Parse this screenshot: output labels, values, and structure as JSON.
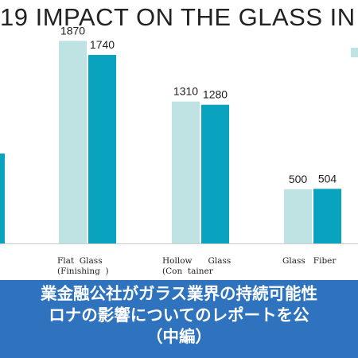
{
  "colors": {
    "light_series": "#bfe2e2",
    "dark_series": "#0aa3bf",
    "banner": "#2f73be"
  },
  "chart_data": {
    "type": "bar",
    "title": "19 IMPACT ON THE GLASS IN",
    "xlabel": "",
    "ylabel": "",
    "ylim": [
      0,
      2100
    ],
    "grid": false,
    "legend": "top-right",
    "categories": [
      "Flat Glass (Finishing)",
      "Hollow Glass (Container)",
      "Glass Fiber"
    ],
    "series": [
      {
        "color": "#bfe2e2",
        "values": [
          1870,
          1310,
          500
        ]
      },
      {
        "color": "#0aa3bf",
        "values": [
          1740,
          1280,
          504
        ]
      }
    ],
    "partial_left_bar": {
      "value": 830
    }
  },
  "category_labels": [
    "Flat  Glass\n(Finishing  )",
    "Hollow      Glass\n(Con  tainer",
    "Glass   Fiber"
  ],
  "banner": {
    "line1": "業金融公社がガラス業界の持続可能性",
    "line2": "ロナの影響についてのレポートを公",
    "line3": "（中編）"
  }
}
